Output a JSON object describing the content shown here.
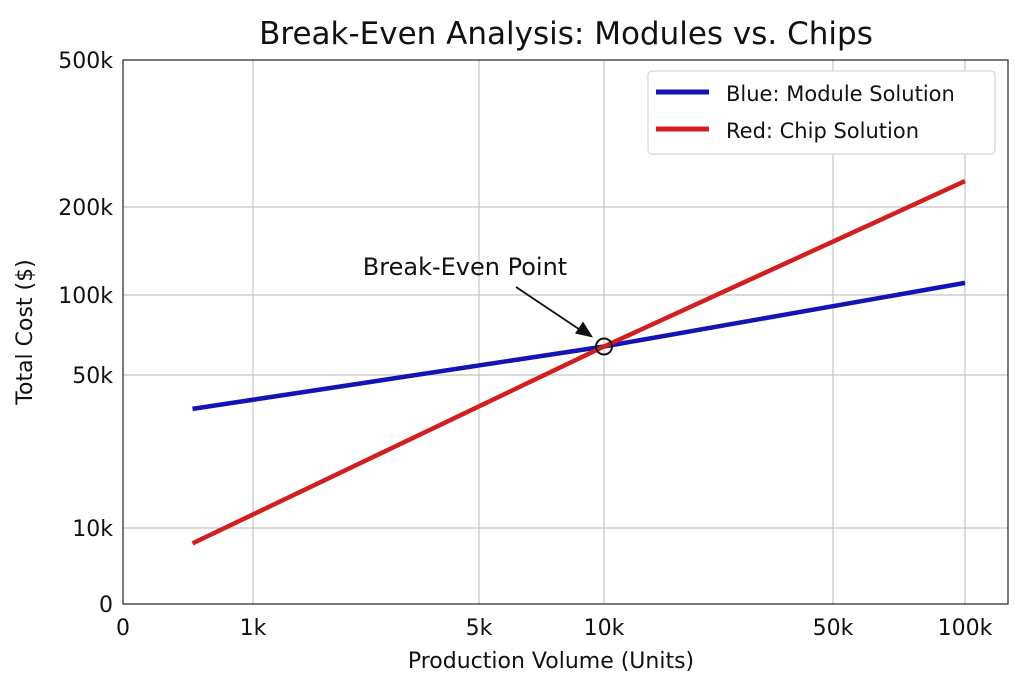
{
  "chart_data": {
    "type": "line",
    "title": "Break-Even Analysis: Modules vs. Chips",
    "xlabel": "Production Volume (Units)",
    "ylabel": "Total Cost ($)",
    "x_scale": "log",
    "y_scale": "log",
    "grid": true,
    "legend_position": "top-right",
    "x_ticks": [
      {
        "value": 0,
        "label": "0"
      },
      {
        "value": 1000,
        "label": "1k"
      },
      {
        "value": 5000,
        "label": "5k"
      },
      {
        "value": 10000,
        "label": "10k"
      },
      {
        "value": 50000,
        "label": "50k"
      },
      {
        "value": 100000,
        "label": "100k"
      }
    ],
    "y_ticks": [
      {
        "value": 0,
        "label": "0"
      },
      {
        "value": 10000,
        "label": "10k"
      },
      {
        "value": 50000,
        "label": "50k"
      },
      {
        "value": 100000,
        "label": "100k"
      },
      {
        "value": 200000,
        "label": "200k"
      },
      {
        "value": 500000,
        "label": "500k"
      }
    ],
    "series": [
      {
        "name": "Blue: Module Solution",
        "color": "#1414b4",
        "x": [
          650,
          10000,
          100000
        ],
        "y": [
          35000,
          64000,
          110000
        ]
      },
      {
        "name": "Red: Chip Solution",
        "color": "#d21e1e",
        "x": [
          650,
          10000,
          100000
        ],
        "y": [
          8500,
          64000,
          235000
        ]
      }
    ],
    "annotation": {
      "text": "Break-Even Point",
      "x": 10000,
      "y": 64000
    }
  }
}
